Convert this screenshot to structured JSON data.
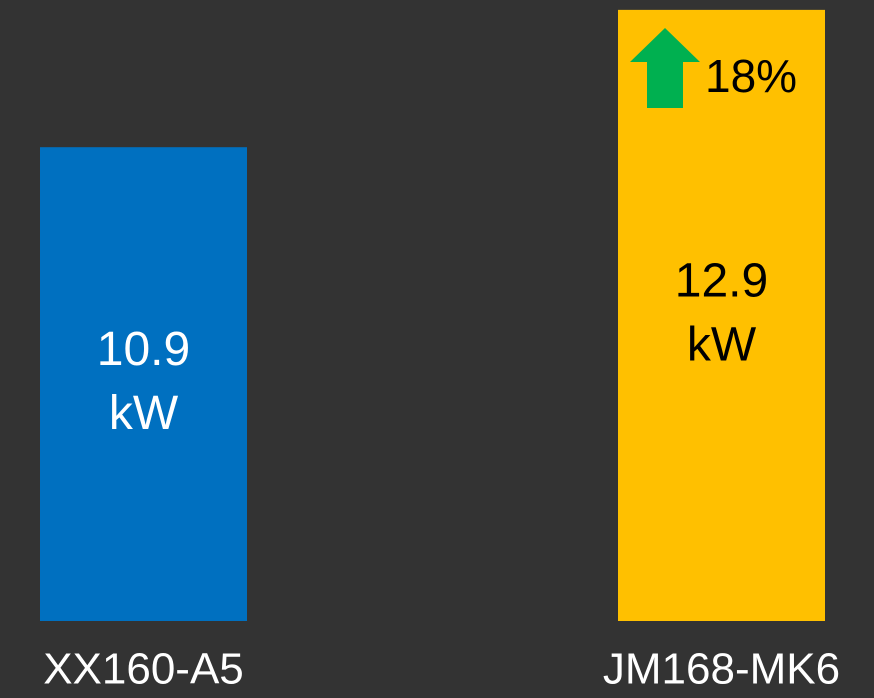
{
  "chart_data": {
    "type": "bar",
    "categories": [
      "XX160-A5",
      "JM168-MK6"
    ],
    "values": [
      10.9,
      12.9
    ],
    "value_labels": [
      "10.9 kW",
      "12.9 kW"
    ],
    "colors": [
      "#0070c0",
      "#ffc000"
    ],
    "ylim": [
      4,
      13
    ],
    "annotation": "18%"
  }
}
